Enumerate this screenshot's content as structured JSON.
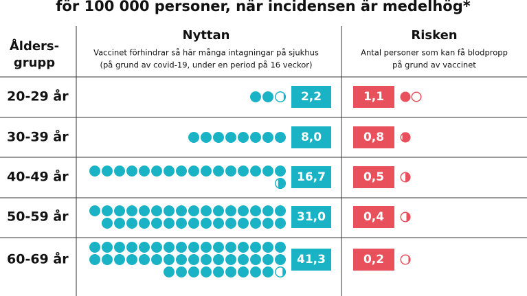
{
  "title": "för 100 000 personer, när incidensen är medelhög*",
  "age_header": [
    "Ålders-",
    "grupp"
  ],
  "categories": [
    "20-29 år",
    "30-39 år",
    "40-49 år",
    "50-59 år",
    "60-69 år"
  ],
  "benefit": {
    "title": "Nyttan",
    "subtitle": [
      "Vaccinet förhindrar så här många intagningar på sjukhus",
      "(på grund av covid-19, under en period på 16 veckor)"
    ],
    "color": "#1ab3c5",
    "values": [
      2.2,
      8.0,
      16.7,
      31.0,
      41.3
    ],
    "value_labels": [
      "2,2",
      "8,0",
      "16,7",
      "31,0",
      "41,3"
    ]
  },
  "risk": {
    "title": "Risken",
    "subtitle": [
      "Antal personer som kan få blodpropp",
      "på grund av vaccinet"
    ],
    "color": "#e8505b",
    "values": [
      1.1,
      0.8,
      0.5,
      0.4,
      0.2
    ],
    "value_labels": [
      "1,1",
      "0,8",
      "0,5",
      "0,4",
      "0,2"
    ]
  }
}
